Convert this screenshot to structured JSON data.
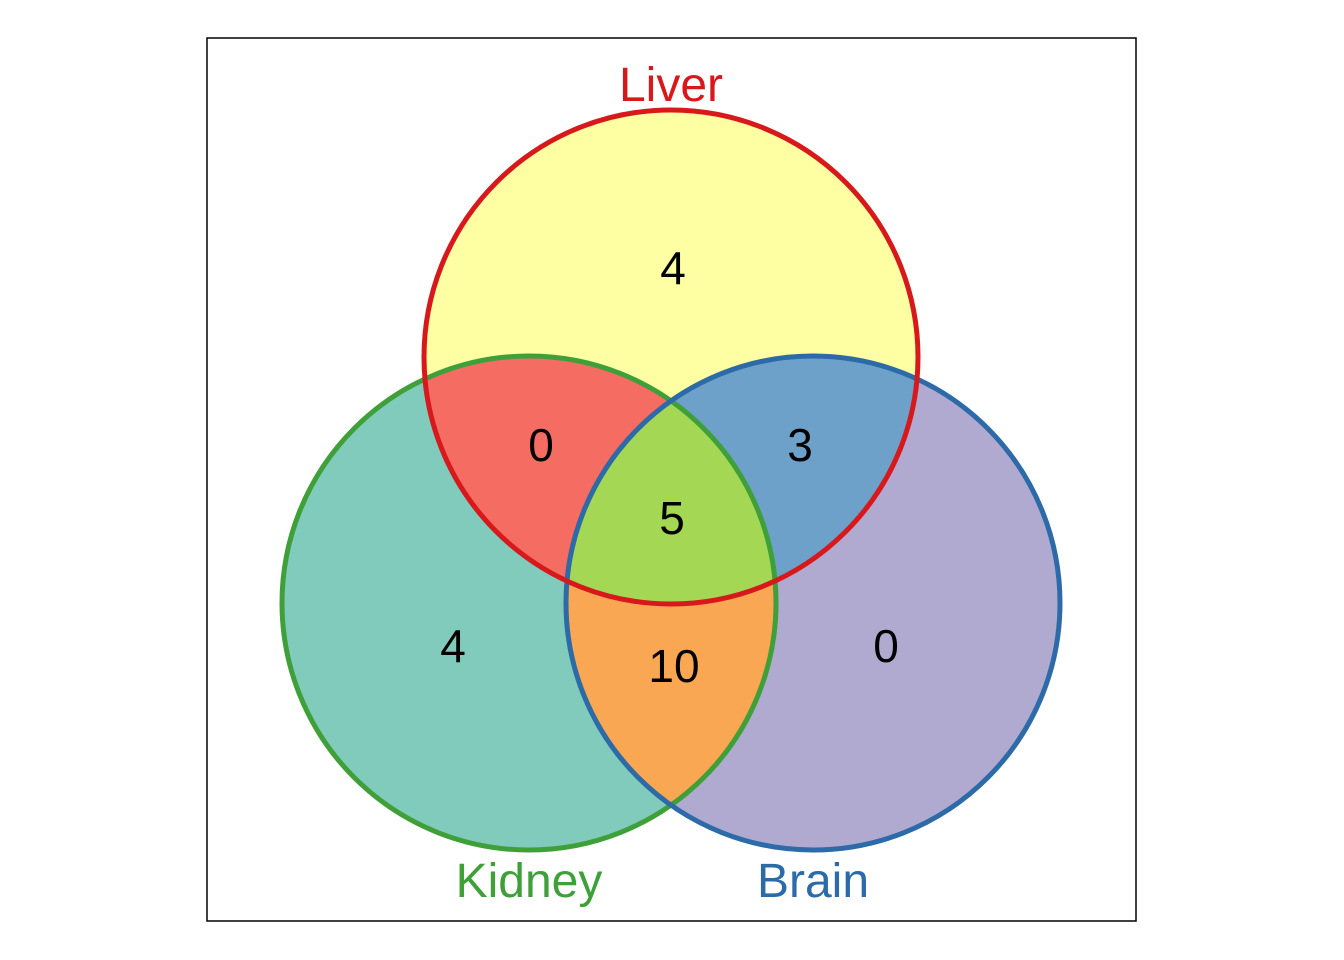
{
  "colors": {
    "liver_stroke": "#d7191c",
    "kidney_stroke": "#3fa03a",
    "brain_stroke": "#2c6aa8",
    "liver_only_fill": "#fefea2",
    "kidney_only_fill": "#80cbbb",
    "brain_only_fill": "#b0aad0",
    "liver_kidney_fill": "#f56c62",
    "liver_brain_fill": "#6da1c9",
    "kidney_brain_fill": "#f9a753",
    "all_three_fill": "#a4d854",
    "frame": "#000000"
  },
  "sets": {
    "liver": "Liver",
    "kidney": "Kidney",
    "brain": "Brain"
  },
  "regions": {
    "liver_only": "4",
    "kidney_only": "4",
    "brain_only": "0",
    "liver_kidney": "0",
    "liver_brain": "3",
    "kidney_brain": "10",
    "all_three": "5"
  }
}
